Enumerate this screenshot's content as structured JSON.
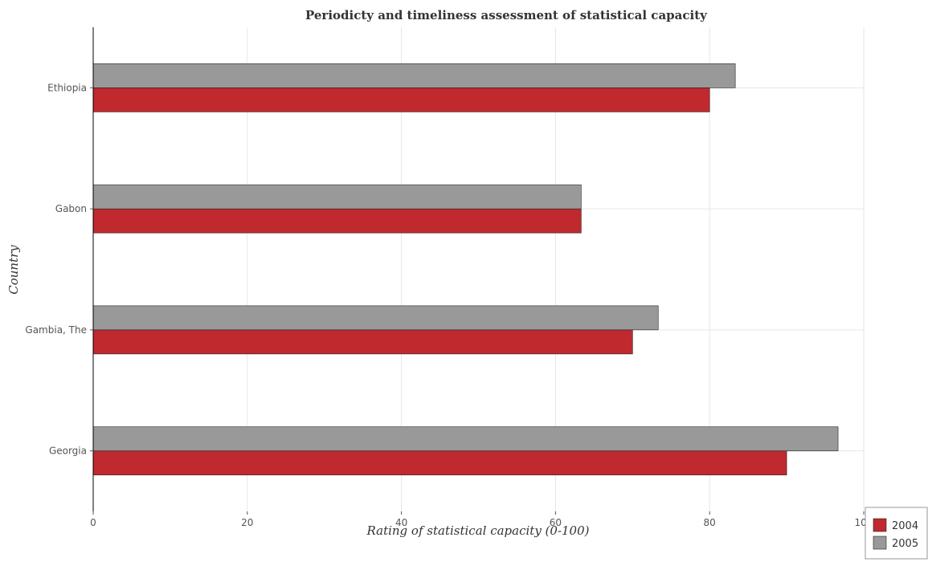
{
  "chart_data": {
    "type": "bar",
    "orientation": "horizontal",
    "title": "Periodicty and timeliness assessment of statistical capacity",
    "xlabel": "Rating of statistical capacity (0-100)",
    "ylabel": "Country",
    "categories": [
      "Ethiopia",
      "Gabon",
      "Gambia, The",
      "Georgia"
    ],
    "series": [
      {
        "name": "2004",
        "color": "#c0292e",
        "values": [
          80,
          63.33,
          70,
          90
        ]
      },
      {
        "name": "2005",
        "color": "#999999",
        "values": [
          83.33,
          63.33,
          73.33,
          96.67
        ]
      }
    ],
    "xlim": [
      0,
      100
    ],
    "xticks": [
      0,
      20,
      40,
      60,
      80,
      100
    ],
    "grid": true,
    "legend_position": "bottom-right"
  }
}
